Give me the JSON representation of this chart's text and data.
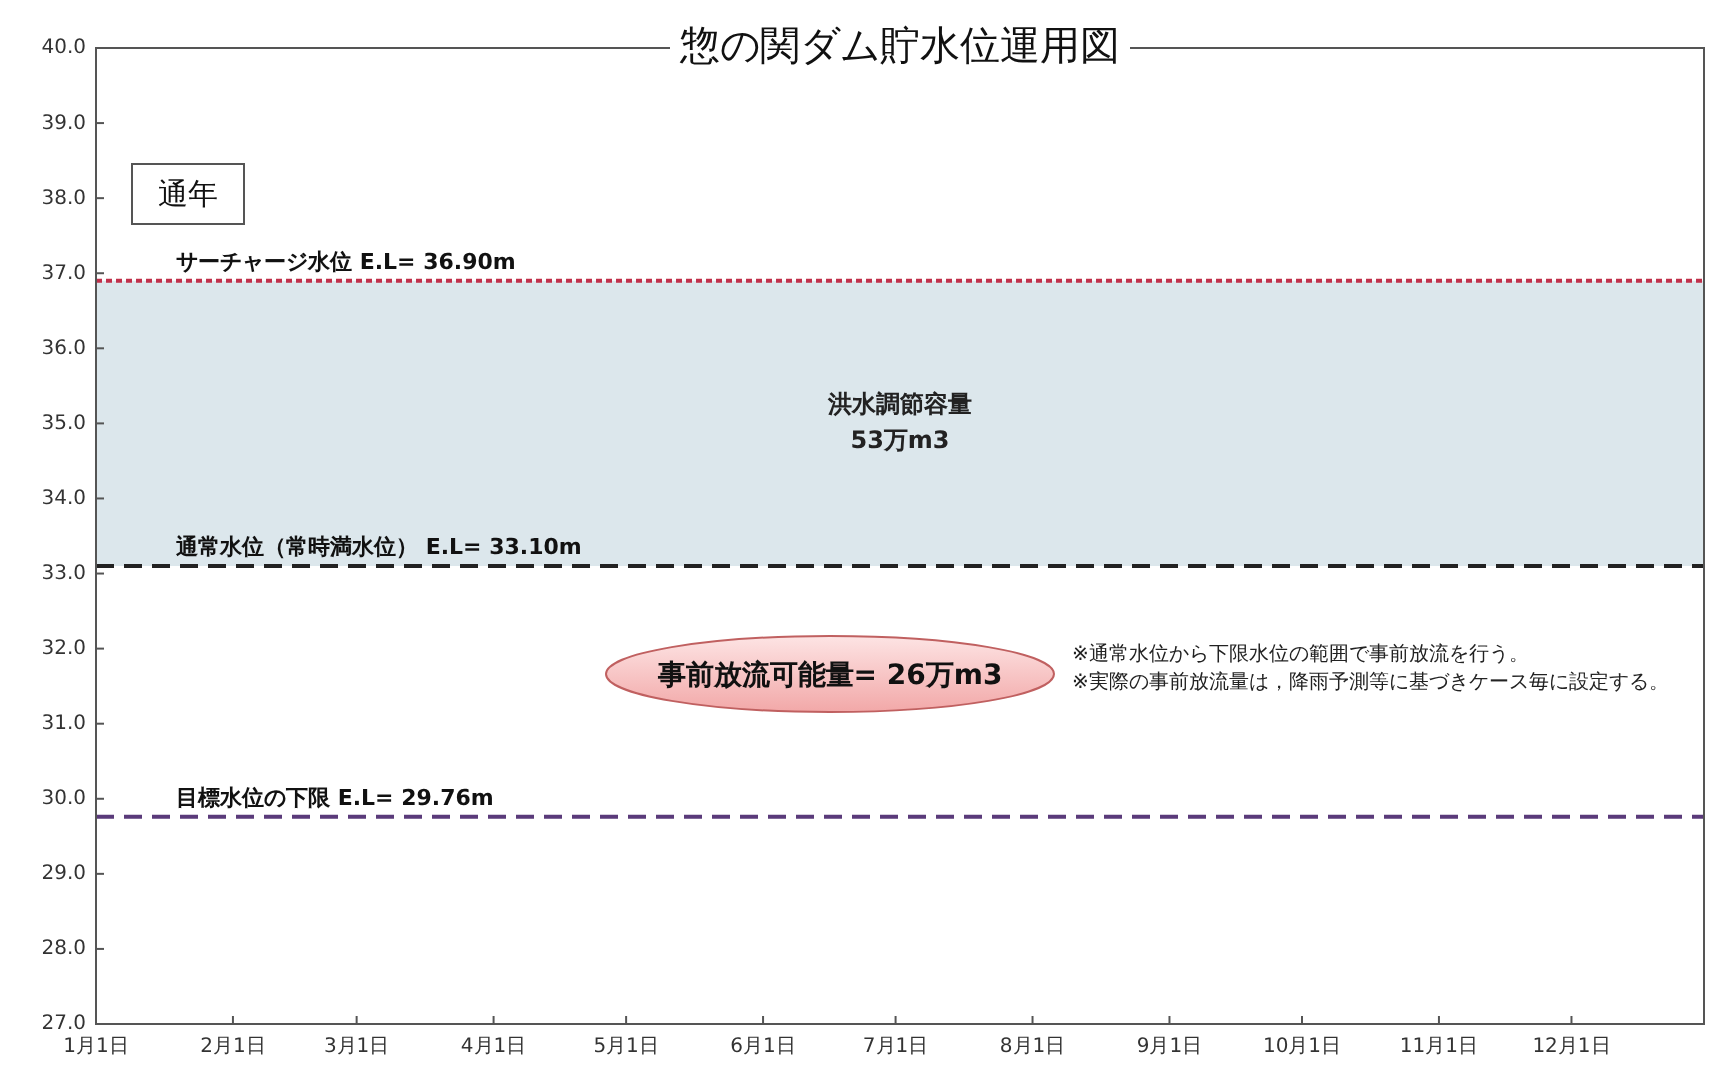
{
  "chart_data": {
    "type": "line",
    "title": "惣の関ダム貯水位運用図",
    "xlim": [
      "--01-01",
      "--12-31"
    ],
    "xticks": [
      {
        "value": "--01-01",
        "label": "1月1日"
      },
      {
        "value": "--02-01",
        "label": "2月1日"
      },
      {
        "value": "--03-01",
        "label": "3月1日"
      },
      {
        "value": "--04-01",
        "label": "4月1日"
      },
      {
        "value": "--05-01",
        "label": "5月1日"
      },
      {
        "value": "--06-01",
        "label": "6月1日"
      },
      {
        "value": "--07-01",
        "label": "7月1日"
      },
      {
        "value": "--08-01",
        "label": "8月1日"
      },
      {
        "value": "--09-01",
        "label": "9月1日"
      },
      {
        "value": "--10-01",
        "label": "10月1日"
      },
      {
        "value": "--11-01",
        "label": "11月1日"
      },
      {
        "value": "--12-01",
        "label": "12月1日"
      }
    ],
    "ylim": [
      27,
      40
    ],
    "yticks": [
      {
        "value": 27,
        "label": "27.0"
      },
      {
        "value": 28,
        "label": "28.0"
      },
      {
        "value": 29,
        "label": "29.0"
      },
      {
        "value": 30,
        "label": "30.0"
      },
      {
        "value": 31,
        "label": "31.0"
      },
      {
        "value": 32,
        "label": "32.0"
      },
      {
        "value": 33,
        "label": "33.0"
      },
      {
        "value": 34,
        "label": "34.0"
      },
      {
        "value": 35,
        "label": "35.0"
      },
      {
        "value": 36,
        "label": "36.0"
      },
      {
        "value": 37,
        "label": "37.0"
      },
      {
        "value": 38,
        "label": "38.0"
      },
      {
        "value": 39,
        "label": "39.0"
      },
      {
        "value": 40,
        "label": "40.0"
      }
    ],
    "ref_lines": [
      {
        "axis": "y",
        "value": 36.9,
        "label": "サーチャージ水位 E.L= 36.90m",
        "color": "#c0304a",
        "line_style": "dotted"
      },
      {
        "axis": "y",
        "value": 33.1,
        "label": "通常水位（常時満水位） E.L= 33.10m",
        "color": "#222222",
        "line_style": "dashed"
      },
      {
        "axis": "y",
        "value": 29.76,
        "label": "目標水位の下限 E.L= 29.76m",
        "color": "#5a3a7a",
        "line_style": "dashed"
      }
    ],
    "bands": [
      {
        "axis": "y",
        "from": 33.1,
        "to": 36.9,
        "label": "洪水調節容量\n53万m3",
        "color": "#dce7ec"
      }
    ],
    "annotations": [
      "通年",
      "事前放流可能量= 26万m3",
      "※通常水位から下限水位の範囲で事前放流を行う。",
      "※実際の事前放流量は，降雨予測等に基づきケース毎に設定する。"
    ],
    "grid": false
  }
}
